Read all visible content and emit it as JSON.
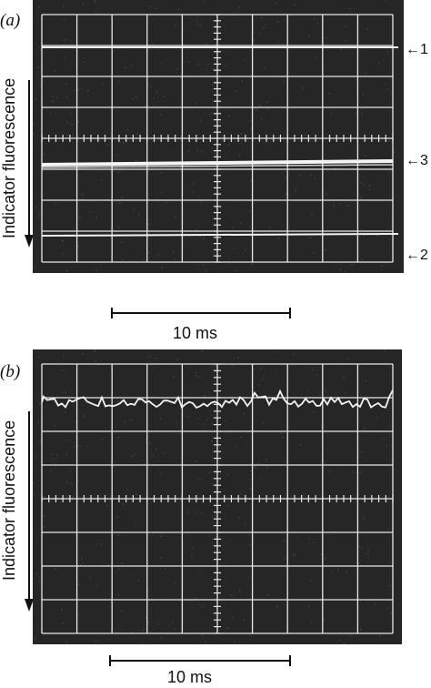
{
  "panel_a": {
    "label": "(a)",
    "y_axis_label": "Indicator fluorescence",
    "trace_markers": [
      "1",
      "3",
      "2"
    ],
    "scale_label": "10 ms"
  },
  "panel_b": {
    "label": "(b)",
    "y_axis_label": "Indicator fluorescence",
    "scale_label": "10 ms"
  },
  "colors": {
    "screen": "#262626",
    "grid": "#e8e8e8",
    "trace": "#f4f4f4",
    "ink": "#111111"
  }
}
